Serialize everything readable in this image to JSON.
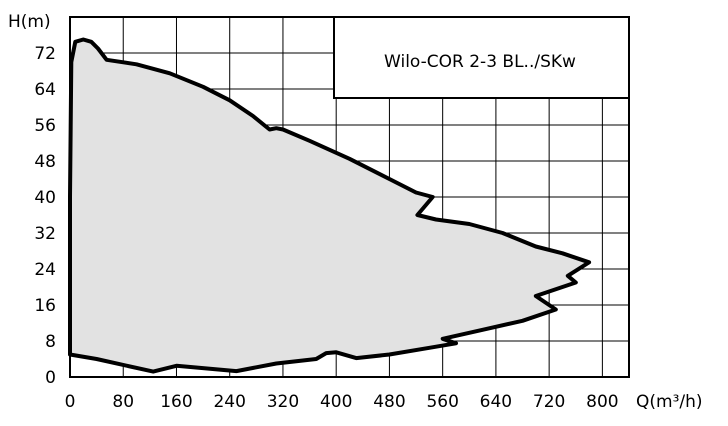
{
  "chart_data": {
    "type": "area",
    "title": "Wilo-COR 2-3 BL../SKw",
    "xlabel": "Q(m³/h)",
    "ylabel": "H(m)",
    "xlim": [
      0,
      840
    ],
    "ylim": [
      0,
      80
    ],
    "x_ticks": [
      0,
      80,
      160,
      240,
      320,
      400,
      480,
      560,
      640,
      720,
      800
    ],
    "y_ticks": [
      0,
      8,
      16,
      24,
      32,
      40,
      48,
      56,
      64,
      72
    ],
    "x_tick_labels": [
      "0",
      "80",
      "160",
      "240",
      "320",
      "400",
      "480",
      "560",
      "640",
      "720",
      "800"
    ],
    "y_tick_labels": [
      "0",
      "8",
      "16",
      "24",
      "32",
      "40",
      "48",
      "56",
      "64",
      "72"
    ],
    "grid": true,
    "grid_step_x": 80,
    "grid_step_y": 8,
    "fill_color": "#e2e2e2",
    "line_color": "#000000",
    "series": [
      {
        "x": [
          0,
          0,
          2,
          8,
          20,
          32,
          42,
          55,
          100,
          150,
          200,
          240,
          275,
          300,
          310,
          320,
          360,
          420,
          480,
          520,
          545,
          522,
          550,
          600,
          650,
          700,
          740,
          780,
          748,
          760,
          700,
          730,
          680,
          620,
          560,
          580,
          540,
          480,
          430,
          400,
          385,
          370,
          310,
          250,
          160,
          125,
          40,
          0
        ],
        "y": [
          5,
          40,
          70,
          74.5,
          75,
          74.5,
          73,
          70.5,
          69.5,
          67.5,
          64.5,
          61.5,
          58,
          55,
          55.3,
          55,
          52.5,
          48.5,
          44,
          41,
          40,
          36,
          35,
          34,
          32,
          29,
          27.5,
          25.5,
          22.5,
          21,
          18,
          15,
          12.5,
          10.5,
          8.5,
          7.5,
          6.5,
          5,
          4.2,
          5.5,
          5.3,
          4,
          3,
          1.3,
          2.5,
          1.2,
          4,
          5
        ]
      }
    ]
  }
}
